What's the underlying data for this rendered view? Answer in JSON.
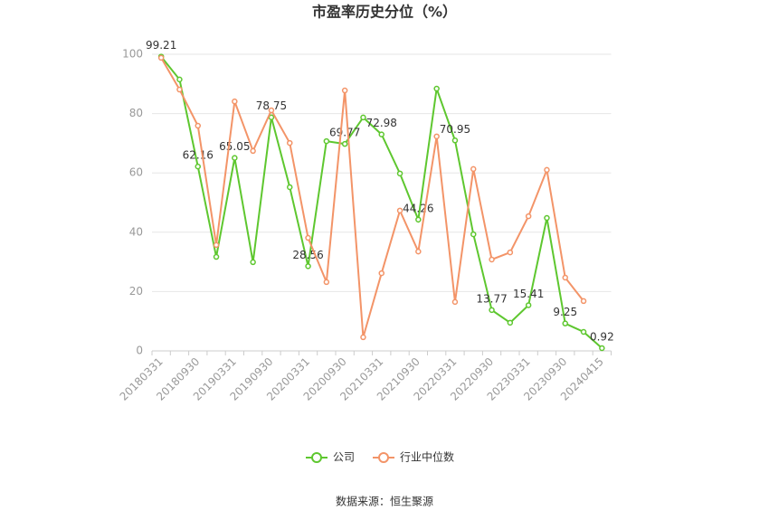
{
  "chart_data": {
    "type": "line",
    "title": "市盈率历史分位（%）",
    "source": "数据来源：恒生聚源",
    "categories": [
      "20180331",
      null,
      "20180930",
      null,
      "20190331",
      null,
      "20190930",
      null,
      "20200331",
      null,
      "20200930",
      null,
      "20210331",
      null,
      "20210930",
      null,
      "20220331",
      null,
      "20220930",
      null,
      "20230331",
      null,
      "20230930",
      null,
      "20240415"
    ],
    "series": [
      {
        "name": "公司",
        "color": "#5ec72f",
        "values": [
          99.21,
          91.5,
          62.16,
          31.7,
          65.05,
          29.9,
          78.75,
          55.2,
          28.56,
          70.7,
          69.77,
          78.7,
          72.98,
          59.8,
          44.26,
          88.4,
          70.95,
          39.3,
          13.77,
          9.5,
          15.41,
          44.8,
          9.25,
          6.4,
          0.92
        ],
        "value_labels": [
          "99.21",
          null,
          "62.16",
          null,
          "65.05",
          null,
          "78.75",
          null,
          "28.56",
          null,
          "69.77",
          null,
          "72.98",
          null,
          "44.26",
          null,
          "70.95",
          null,
          "13.77",
          null,
          "15.41",
          null,
          "9.25",
          null,
          "0.92"
        ]
      },
      {
        "name": "行业中位数",
        "color": "#f39468",
        "values": [
          98.8,
          88.1,
          75.9,
          35.7,
          84.1,
          67.4,
          81.1,
          70.1,
          38.1,
          23.2,
          87.8,
          4.6,
          26.2,
          47.3,
          33.5,
          72.3,
          16.5,
          61.3,
          30.8,
          33.2,
          45.4,
          61.0,
          24.7,
          16.8,
          null
        ]
      }
    ],
    "ylim": [
      0,
      100
    ],
    "yticks": [
      0,
      20,
      40,
      60,
      80,
      100
    ],
    "grid": true,
    "legend": "bottom"
  }
}
